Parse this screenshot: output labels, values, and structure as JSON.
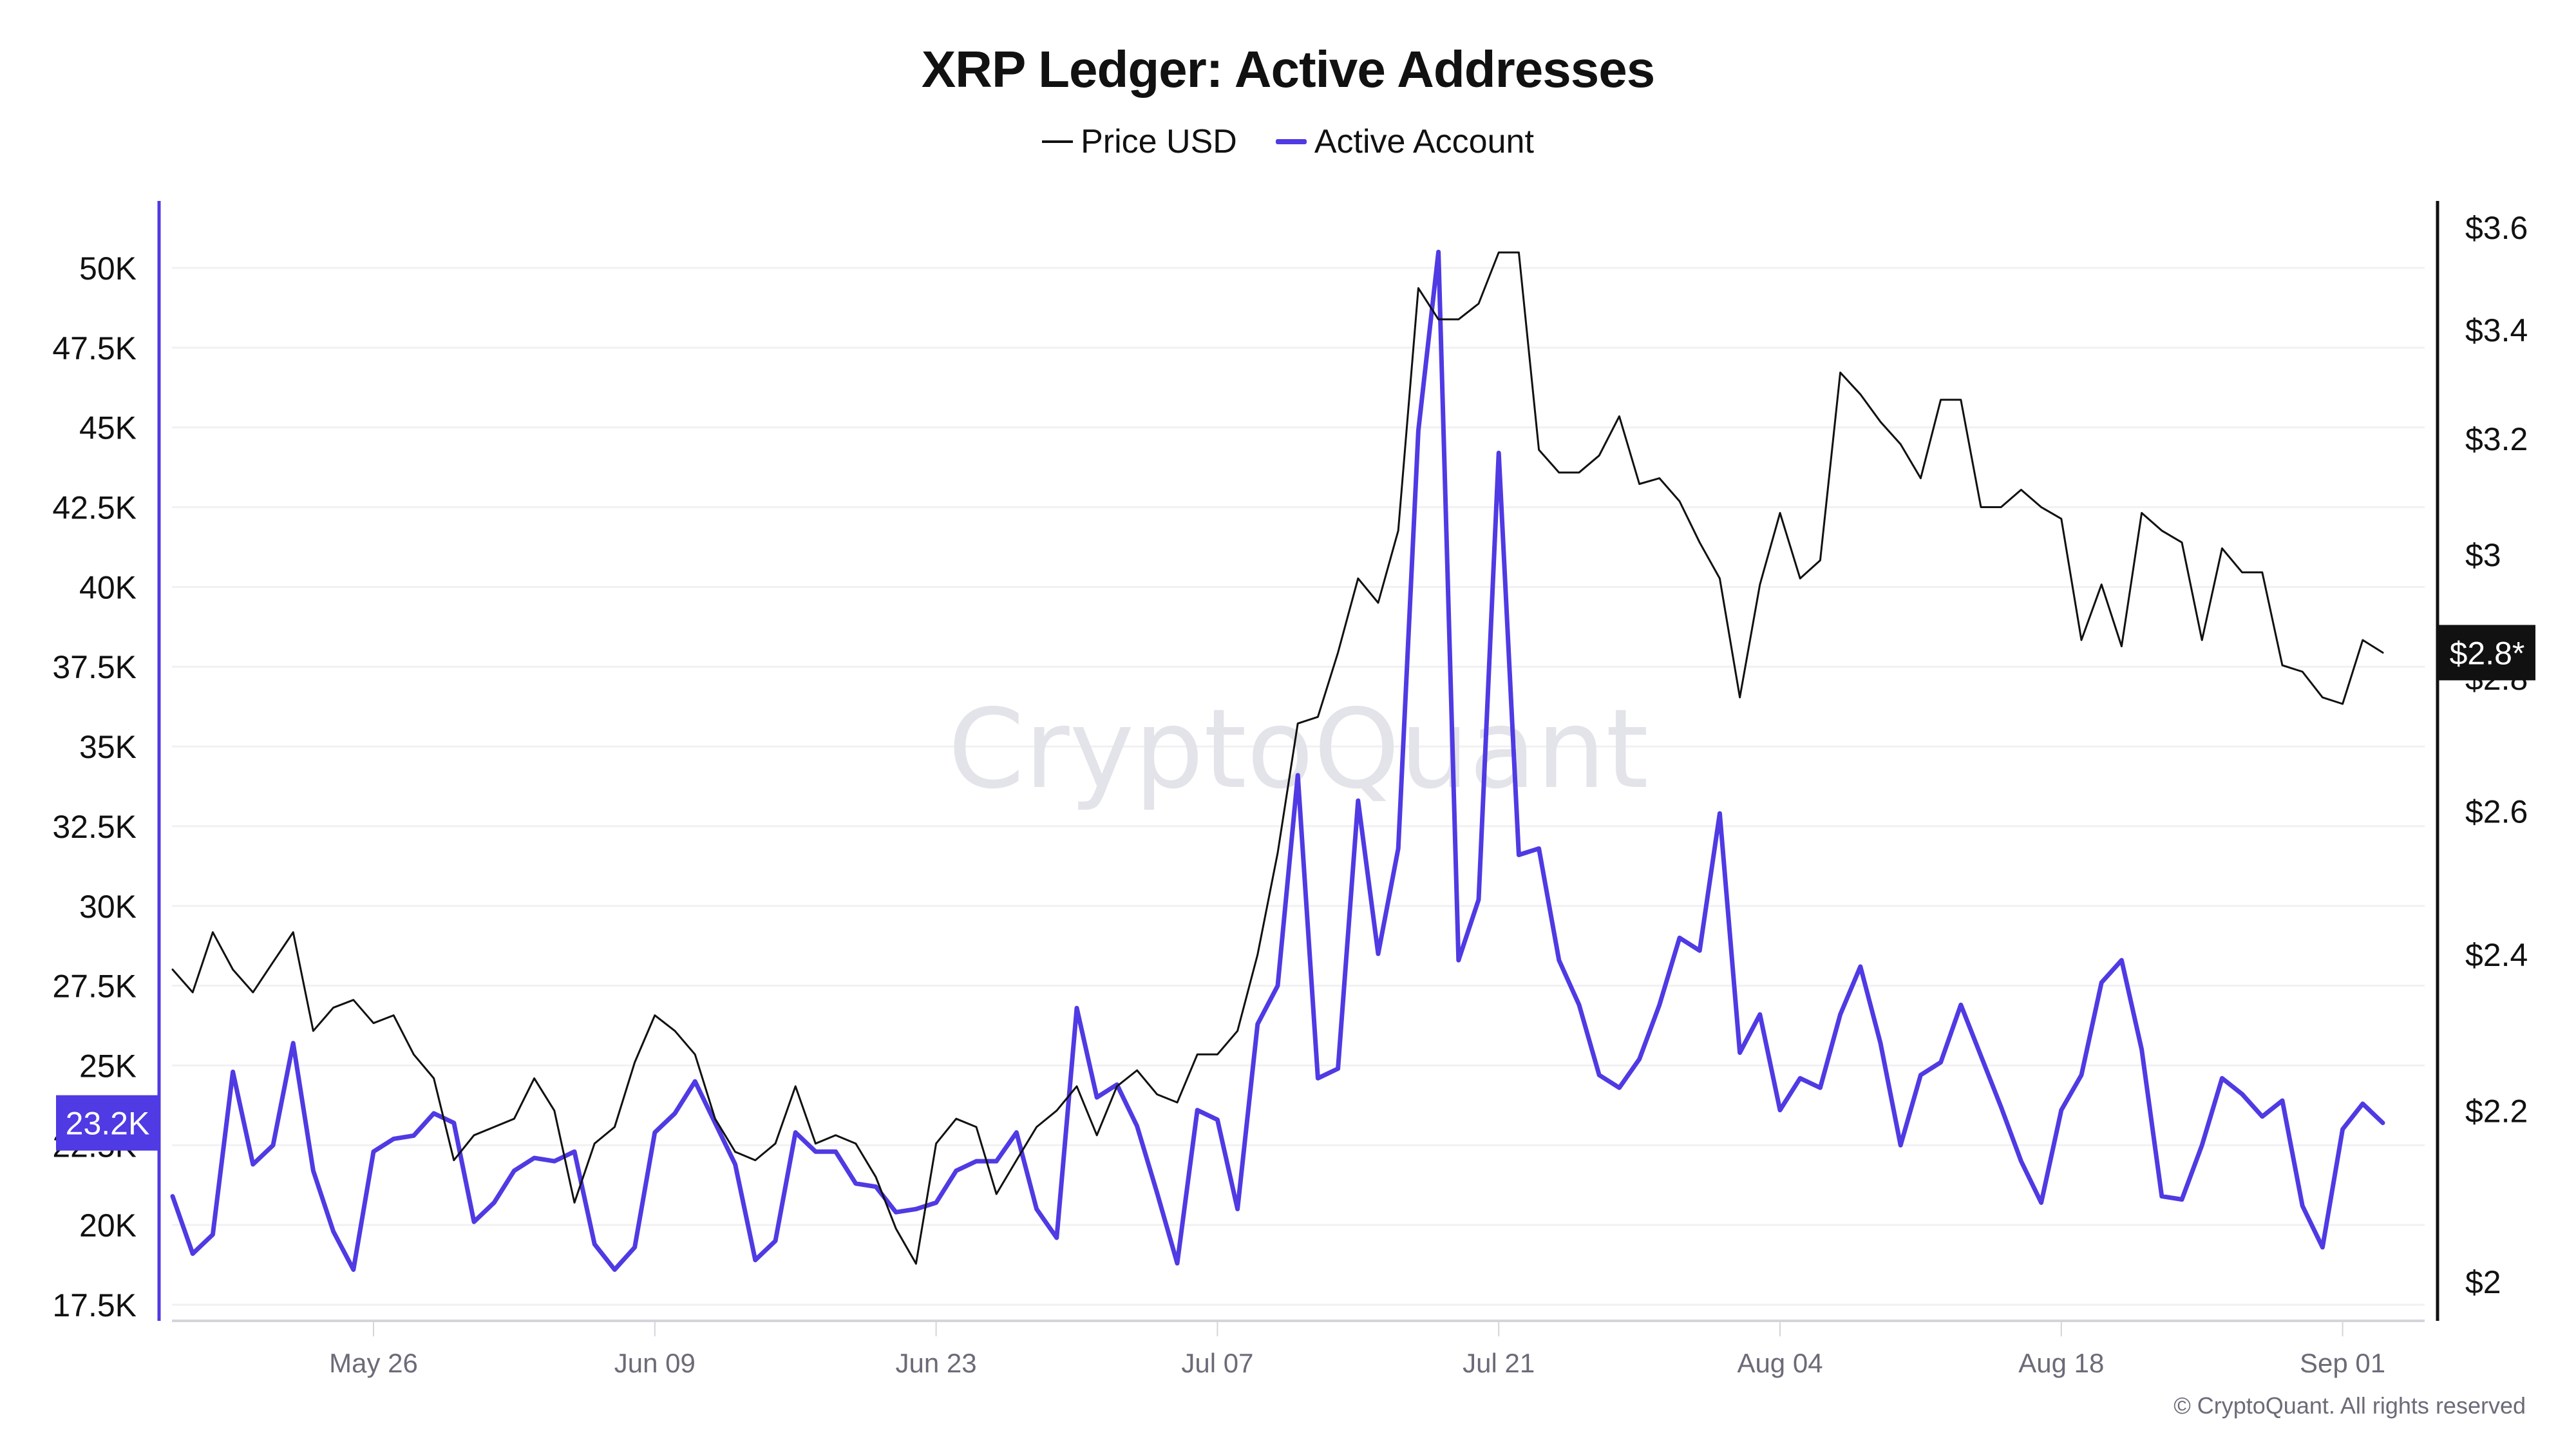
{
  "chart_data": {
    "type": "line",
    "title": "XRP Ledger: Active Addresses",
    "legend": {
      "placement": "top-center",
      "entries": [
        {
          "name": "Price USD",
          "color": "#111111"
        },
        {
          "name": "Active Account",
          "color": "#4F3AE3"
        }
      ]
    },
    "x": {
      "start_date": "2025-05-16",
      "end_date": "2025-09-03",
      "interval": "1 day",
      "tick_labels": [
        "May 26",
        "Jun 09",
        "Jun 23",
        "Jul 07",
        "Jul 21",
        "Aug 04",
        "Aug 18",
        "Sep 01"
      ],
      "tick_day_index": [
        10,
        24,
        38,
        52,
        66,
        80,
        94,
        108
      ],
      "domain_day_index": [
        -0.5,
        112
      ]
    },
    "y_left": {
      "label": "Active Account",
      "scale": "linear",
      "unit": "K",
      "ticks": [
        17.5,
        20,
        22.5,
        25,
        27.5,
        30,
        32.5,
        35,
        37.5,
        40,
        42.5,
        45,
        47.5,
        50
      ],
      "tick_labels": [
        "17.5K",
        "20K",
        "22.5K",
        "25K",
        "27.5K",
        "30K",
        "32.5K",
        "35K",
        "37.5K",
        "40K",
        "42.5K",
        "45K",
        "47.5K",
        "50K"
      ],
      "range": [
        16.9,
        52.1
      ],
      "color": "#4F3AE3"
    },
    "y_right": {
      "label": "Price USD",
      "scale": "log",
      "ticks": [
        2.0,
        2.2,
        2.4,
        2.6,
        2.8,
        3.0,
        3.2,
        3.4,
        3.6
      ],
      "tick_labels": [
        "$2",
        "$2.2",
        "$2.4",
        "$2.6",
        "$2.8",
        "$3",
        "$3.2",
        "$3.4",
        "$3.6"
      ],
      "range": [
        1.98,
        3.68
      ],
      "color": "#111111"
    },
    "grid": true,
    "series": [
      {
        "name": "Active Account",
        "axis": "left",
        "unit": "thousands",
        "values": [
          20.9,
          19.1,
          19.7,
          24.8,
          21.9,
          22.5,
          25.7,
          21.7,
          19.8,
          18.6,
          22.3,
          22.7,
          22.8,
          23.5,
          23.2,
          20.1,
          20.7,
          21.7,
          22.1,
          22.0,
          22.3,
          19.4,
          18.6,
          19.3,
          22.9,
          23.5,
          24.5,
          23.2,
          21.9,
          18.9,
          19.5,
          22.9,
          22.3,
          22.3,
          21.3,
          21.2,
          20.4,
          20.5,
          20.7,
          21.7,
          22.0,
          22.0,
          22.9,
          20.5,
          19.6,
          26.8,
          24.0,
          24.4,
          23.1,
          21.0,
          18.8,
          23.6,
          23.3,
          20.5,
          26.3,
          27.5,
          34.1,
          24.6,
          24.9,
          33.3,
          28.5,
          31.8,
          44.9,
          50.5,
          28.3,
          30.2,
          44.2,
          31.6,
          31.8,
          28.3,
          26.9,
          24.7,
          24.3,
          25.2,
          26.9,
          29.0,
          28.6,
          32.9,
          25.4,
          26.6,
          23.6,
          24.6,
          24.3,
          26.6,
          28.1,
          25.7,
          22.5,
          24.7,
          25.1,
          26.9,
          25.3,
          23.7,
          22.0,
          20.7,
          23.6,
          24.7,
          27.6,
          28.3,
          25.5,
          20.9,
          20.8,
          22.5,
          24.6,
          24.1,
          23.4,
          23.9,
          20.6,
          19.3,
          23.0,
          23.8,
          23.2
        ]
      },
      {
        "name": "Price USD",
        "axis": "right",
        "unit": "USD",
        "values": [
          2.38,
          2.35,
          2.43,
          2.38,
          2.35,
          2.39,
          2.43,
          2.3,
          2.33,
          2.34,
          2.31,
          2.32,
          2.27,
          2.24,
          2.14,
          2.17,
          2.18,
          2.19,
          2.24,
          2.2,
          2.09,
          2.16,
          2.18,
          2.26,
          2.32,
          2.3,
          2.27,
          2.19,
          2.15,
          2.14,
          2.16,
          2.23,
          2.16,
          2.17,
          2.16,
          2.12,
          2.06,
          2.02,
          2.16,
          2.19,
          2.18,
          2.1,
          2.14,
          2.18,
          2.2,
          2.23,
          2.17,
          2.23,
          2.25,
          2.22,
          2.21,
          2.27,
          2.27,
          2.3,
          2.4,
          2.54,
          2.73,
          2.74,
          2.84,
          2.96,
          2.92,
          3.04,
          3.48,
          3.42,
          3.42,
          3.45,
          3.55,
          3.55,
          3.18,
          3.14,
          3.14,
          3.17,
          3.24,
          3.12,
          3.13,
          3.09,
          3.02,
          2.96,
          2.77,
          2.95,
          3.07,
          2.96,
          2.99,
          3.32,
          3.28,
          3.23,
          3.19,
          3.13,
          3.27,
          3.27,
          3.08,
          3.08,
          3.11,
          3.08,
          3.06,
          2.86,
          2.95,
          2.85,
          3.07,
          3.04,
          3.02,
          2.86,
          3.01,
          2.97,
          2.97,
          2.82,
          2.81,
          2.77,
          2.76,
          2.86,
          2.84
        ]
      }
    ],
    "latest_labels": {
      "active_account": "23.2K",
      "price": "$2.8*"
    },
    "watermark": "CryptoQuant",
    "copyright": "© CryptoQuant. All rights reserved"
  },
  "colors": {
    "active": "#4F3AE3",
    "price": "#111111",
    "grid": "#f1f1f3",
    "axis_bottom": "#d4d4dc",
    "tick_text": "#6b6b78"
  }
}
